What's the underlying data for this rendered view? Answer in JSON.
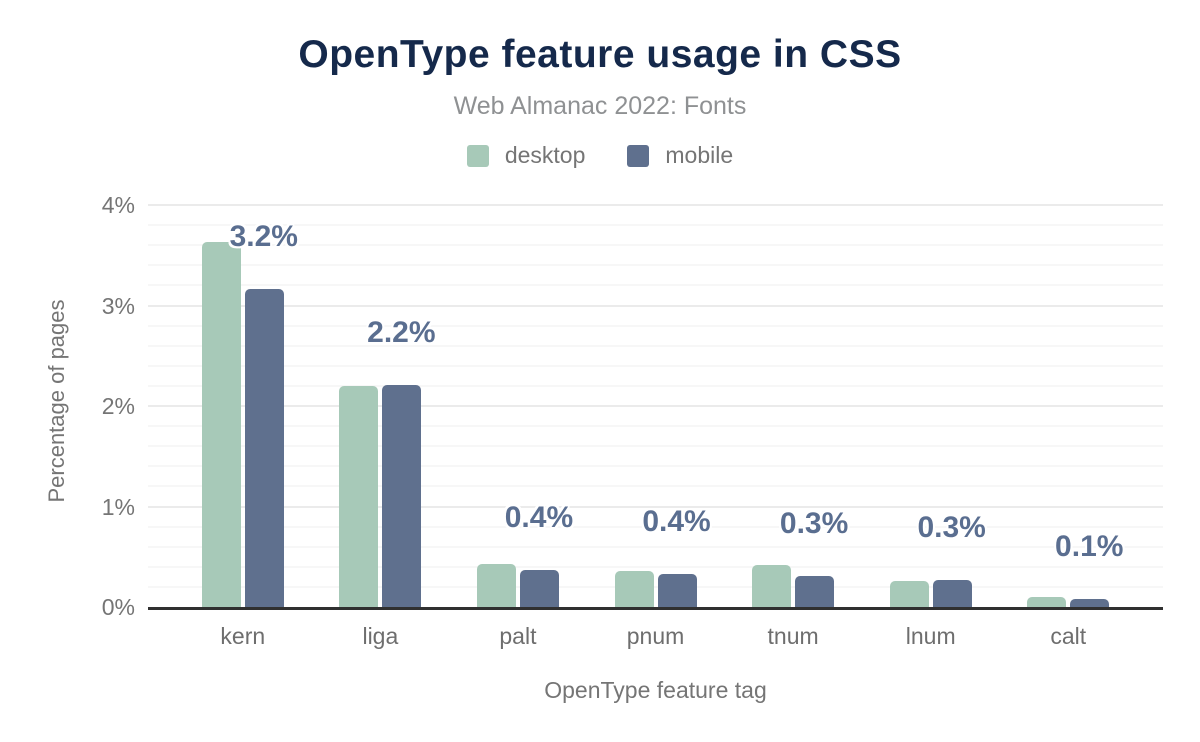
{
  "header": {
    "title": "OpenType feature usage in CSS",
    "subtitle": "Web Almanac 2022: Fonts"
  },
  "legend": [
    {
      "label": "desktop",
      "color": "#a7c9b8"
    },
    {
      "label": "mobile",
      "color": "#5f708e"
    }
  ],
  "chart_data": {
    "type": "bar",
    "title": "OpenType feature usage in CSS",
    "subtitle": "Web Almanac 2022: Fonts",
    "categories": [
      "kern",
      "liga",
      "palt",
      "pnum",
      "tnum",
      "lnum",
      "calt"
    ],
    "series": [
      {
        "name": "desktop",
        "color": "#a7c9b8",
        "values": [
          3.63,
          2.2,
          0.43,
          0.36,
          0.42,
          0.26,
          0.1
        ]
      },
      {
        "name": "mobile",
        "color": "#5f708e",
        "values": [
          3.16,
          2.21,
          0.37,
          0.33,
          0.31,
          0.27,
          0.08
        ]
      }
    ],
    "bar_labels": [
      "3.2%",
      "2.2%",
      "0.4%",
      "0.4%",
      "0.3%",
      "0.3%",
      "0.1%"
    ],
    "xlabel": "OpenType feature tag",
    "ylabel": "Percentage of pages",
    "y_ticks": [
      "0%",
      "1%",
      "2%",
      "3%",
      "4%"
    ],
    "ylim": [
      0,
      4.1
    ],
    "grid": "horizontal, major every 1, minor every 0.2",
    "legend_position": "top"
  },
  "colors": {
    "title_text": "#15294b",
    "subtitle_text": "#8f9193",
    "axis_text": "#757575",
    "data_label_text": "#5a6e90",
    "baseline": "#303030",
    "grid_major": "#ebebeb",
    "grid_minor": "#f7f7f7",
    "background": "#ffffff"
  }
}
